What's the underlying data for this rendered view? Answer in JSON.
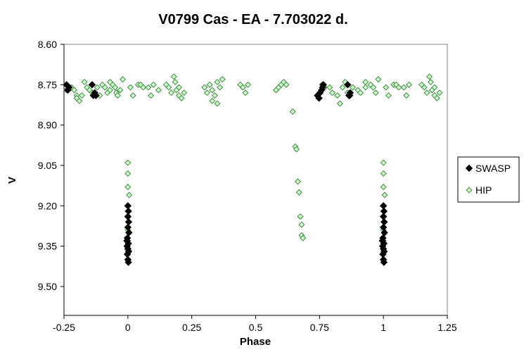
{
  "chart_data": {
    "type": "scatter",
    "title": "V0799 Cas - EA - 7.703022 d.",
    "xlabel": "Phase",
    "ylabel": "V",
    "xlim": [
      -0.25,
      1.25
    ],
    "ylim": [
      8.6,
      9.6
    ],
    "y_inverted": true,
    "x_ticks": [
      "-0.25",
      "0",
      "0.25",
      "0.5",
      "0.75",
      "1",
      "1.25"
    ],
    "y_ticks": [
      "8.60",
      "8.75",
      "8.90",
      "9.05",
      "9.20",
      "9.35",
      "9.50"
    ],
    "grid": false,
    "legend_position": "right",
    "series": [
      {
        "name": "SWASP",
        "marker": "filled-diamond",
        "color": "#000000",
        "points": [
          [
            -0.24,
            8.75
          ],
          [
            -0.235,
            8.77
          ],
          [
            -0.23,
            8.76
          ],
          [
            -0.14,
            8.75
          ],
          [
            -0.135,
            8.79
          ],
          [
            -0.13,
            8.78
          ],
          [
            -0.125,
            8.79
          ],
          [
            0.0,
            9.2
          ],
          [
            0.002,
            9.22
          ],
          [
            0.0,
            9.24
          ],
          [
            0.003,
            9.26
          ],
          [
            0.0,
            9.28
          ],
          [
            0.004,
            9.3
          ],
          [
            -0.002,
            9.32
          ],
          [
            -0.004,
            9.33
          ],
          [
            0.002,
            9.34
          ],
          [
            -0.003,
            9.35
          ],
          [
            0.0,
            9.36
          ],
          [
            0.003,
            9.37
          ],
          [
            -0.002,
            9.38
          ],
          [
            0.0,
            9.4
          ],
          [
            0.002,
            9.41
          ],
          [
            0.742,
            8.79
          ],
          [
            0.748,
            8.8
          ],
          [
            0.752,
            8.78
          ],
          [
            0.758,
            8.77
          ],
          [
            0.762,
            8.76
          ],
          [
            0.765,
            8.75
          ],
          [
            0.86,
            8.75
          ],
          [
            0.865,
            8.79
          ],
          [
            0.87,
            8.78
          ],
          [
            0.868,
            8.79
          ],
          [
            1.0,
            9.2
          ],
          [
            1.002,
            9.22
          ],
          [
            1.0,
            9.24
          ],
          [
            1.003,
            9.26
          ],
          [
            1.0,
            9.28
          ],
          [
            1.004,
            9.3
          ],
          [
            0.998,
            9.32
          ],
          [
            0.996,
            9.33
          ],
          [
            1.002,
            9.34
          ],
          [
            0.997,
            9.35
          ],
          [
            1.0,
            9.36
          ],
          [
            1.003,
            9.37
          ],
          [
            0.998,
            9.38
          ],
          [
            1.0,
            9.4
          ],
          [
            1.002,
            9.41
          ]
        ]
      },
      {
        "name": "HIP",
        "marker": "open-diamond",
        "color": "#66cc66",
        "points": [
          [
            -0.24,
            8.77
          ],
          [
            -0.22,
            8.76
          ],
          [
            -0.21,
            8.77
          ],
          [
            -0.2,
            8.79
          ],
          [
            -0.19,
            8.81
          ],
          [
            -0.17,
            8.74
          ],
          [
            -0.16,
            8.76
          ],
          [
            -0.15,
            8.77
          ],
          [
            -0.14,
            8.78
          ],
          [
            -0.12,
            8.76
          ],
          [
            -0.11,
            8.79
          ],
          [
            -0.1,
            8.75
          ],
          [
            -0.09,
            8.76
          ],
          [
            -0.08,
            8.78
          ],
          [
            -0.07,
            8.77
          ],
          [
            -0.06,
            8.75
          ],
          [
            -0.05,
            8.76
          ],
          [
            -0.045,
            8.78
          ],
          [
            -0.04,
            8.79
          ],
          [
            -0.03,
            8.77
          ],
          [
            -0.02,
            8.73
          ],
          [
            0.0,
            9.04
          ],
          [
            0.0,
            9.08
          ],
          [
            0.01,
            8.76
          ],
          [
            0.02,
            8.79
          ],
          [
            0.04,
            8.75
          ],
          [
            0.05,
            8.75
          ],
          [
            0.06,
            8.76
          ],
          [
            0.08,
            8.76
          ],
          [
            0.09,
            8.79
          ],
          [
            0.1,
            8.75
          ],
          [
            0.15,
            8.75
          ],
          [
            0.16,
            8.76
          ],
          [
            0.17,
            8.78
          ],
          [
            0.18,
            8.72
          ],
          [
            0.185,
            8.74
          ],
          [
            0.19,
            8.77
          ],
          [
            0.2,
            8.76
          ],
          [
            0.2,
            8.79
          ],
          [
            0.21,
            8.8
          ],
          [
            0.3,
            8.76
          ],
          [
            0.31,
            8.78
          ],
          [
            0.32,
            8.75
          ],
          [
            0.33,
            8.77
          ],
          [
            0.34,
            8.79
          ],
          [
            0.35,
            8.74
          ],
          [
            0.36,
            8.76
          ],
          [
            0.37,
            8.73
          ],
          [
            0.44,
            8.75
          ],
          [
            0.45,
            8.76
          ],
          [
            0.46,
            8.78
          ],
          [
            0.47,
            8.75
          ],
          [
            0.58,
            8.77
          ],
          [
            0.59,
            8.76
          ],
          [
            0.6,
            8.75
          ],
          [
            0.61,
            8.74
          ],
          [
            0.62,
            8.75
          ],
          [
            0.645,
            8.85
          ],
          [
            0.655,
            8.98
          ],
          [
            0.66,
            8.99
          ],
          [
            0.665,
            9.11
          ],
          [
            0.67,
            9.15
          ],
          [
            0.675,
            9.24
          ],
          [
            0.68,
            9.27
          ],
          [
            0.68,
            9.31
          ],
          [
            0.685,
            9.32
          ],
          [
            0.76,
            8.75
          ],
          [
            0.77,
            8.76
          ],
          [
            0.79,
            8.76
          ],
          [
            0.8,
            8.78
          ],
          [
            0.82,
            8.79
          ],
          [
            0.83,
            8.82
          ],
          [
            0.84,
            8.76
          ],
          [
            0.85,
            8.74
          ],
          [
            0.86,
            8.78
          ],
          [
            0.88,
            8.76
          ],
          [
            0.9,
            8.77
          ],
          [
            0.91,
            8.78
          ],
          [
            0.93,
            8.76
          ],
          [
            0.95,
            8.75
          ],
          [
            0.96,
            8.76
          ],
          [
            0.97,
            8.78
          ],
          [
            0.98,
            8.73
          ],
          [
            1.0,
            9.04
          ],
          [
            1.0,
            9.08
          ],
          [
            1.01,
            8.76
          ],
          [
            1.02,
            8.79
          ],
          [
            1.04,
            8.75
          ],
          [
            1.05,
            8.75
          ],
          [
            1.06,
            8.76
          ],
          [
            1.08,
            8.76
          ],
          [
            1.09,
            8.79
          ],
          [
            1.1,
            8.75
          ],
          [
            1.15,
            8.75
          ],
          [
            1.16,
            8.76
          ],
          [
            1.17,
            8.78
          ],
          [
            1.18,
            8.72
          ],
          [
            1.185,
            8.74
          ],
          [
            1.19,
            8.77
          ],
          [
            1.2,
            8.76
          ],
          [
            1.2,
            8.79
          ],
          [
            1.21,
            8.8
          ],
          [
            -0.2,
            8.8
          ],
          [
            -0.18,
            8.79
          ],
          [
            0.12,
            8.77
          ],
          [
            0.0,
            9.13
          ],
          [
            0.0,
            9.29
          ],
          [
            0.0,
            9.33
          ],
          [
            0.002,
            9.37
          ],
          [
            1.0,
            9.13
          ],
          [
            1.0,
            9.29
          ],
          [
            1.0,
            9.33
          ],
          [
            1.002,
            9.37
          ],
          [
            0.005,
            9.16
          ],
          [
            1.005,
            9.16
          ],
          [
            -0.07,
            8.74
          ],
          [
            0.93,
            8.74
          ],
          [
            0.22,
            8.78
          ],
          [
            1.22,
            8.78
          ],
          [
            0.33,
            8.81
          ],
          [
            0.35,
            8.82
          ]
        ]
      }
    ]
  }
}
